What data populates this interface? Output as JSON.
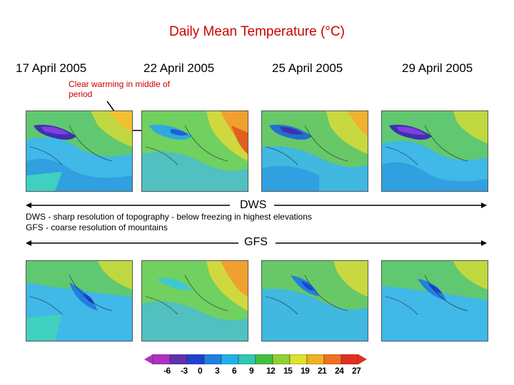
{
  "title": "Daily Mean Temperature (°C)",
  "dates": [
    "17 April 2005",
    "22 April 2005",
    "25 April 2005",
    "29 April 2005"
  ],
  "annotation": "Clear warming in middle of period",
  "sections": {
    "dws": {
      "label": "DWS",
      "description": "DWS - sharp resolution of topography - below freezing in highest elevations"
    },
    "gfs": {
      "label": "GFS",
      "description": "GFS - coarse resolution of mountains"
    }
  },
  "colorbar": {
    "labels": [
      "-6",
      "-3",
      "0",
      "3",
      "6",
      "9",
      "12",
      "15",
      "19",
      "21",
      "24",
      "27"
    ],
    "colors": [
      "#b030c0",
      "#6030b0",
      "#2040d0",
      "#2080e0",
      "#20b0f0",
      "#30c8b0",
      "#40c040",
      "#90d030",
      "#e0e030",
      "#f0b020",
      "#f07020",
      "#e03020"
    ]
  },
  "colors": {
    "title": "#cc0000",
    "annotation": "#cc0000"
  }
}
